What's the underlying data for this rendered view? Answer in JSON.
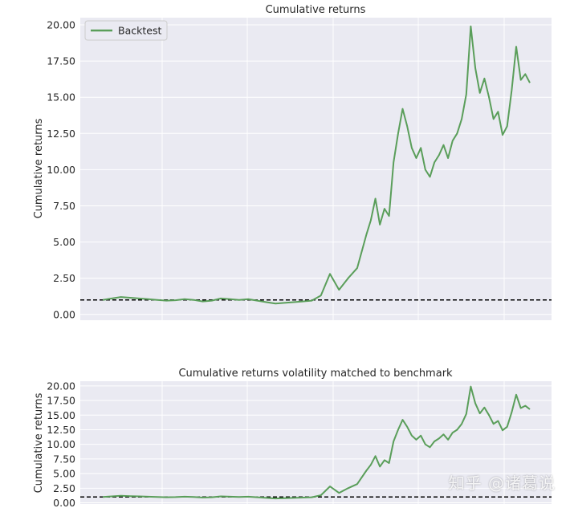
{
  "chart_data": [
    {
      "type": "line",
      "title": "Cumulative returns",
      "xlabel": "",
      "ylabel": "Cumulative returns",
      "ylim": [
        -0.4,
        20.5
      ],
      "yticks": [
        "0.00",
        "2.50",
        "5.00",
        "7.50",
        "10.00",
        "12.50",
        "15.00",
        "17.50",
        "20.00"
      ],
      "ytick_values": [
        0,
        2.5,
        5,
        7.5,
        10,
        12.5,
        15,
        17.5,
        20
      ],
      "xlim": [
        0,
        100
      ],
      "grid": true,
      "legend_position": "upper-left",
      "reference_line": {
        "y": 1.0,
        "style": "dashed",
        "color": "#000000"
      },
      "series": [
        {
          "name": "Backtest",
          "color": "#5a9e5a",
          "x": [
            0,
            2,
            4,
            6,
            8,
            10,
            12,
            14,
            16,
            18,
            20,
            22,
            24,
            26,
            28,
            30,
            32,
            34,
            36,
            38,
            40,
            42,
            44,
            46,
            48,
            50,
            52,
            54,
            56,
            58,
            59,
            60,
            61,
            62,
            63,
            64,
            65,
            66,
            67,
            68,
            69,
            70,
            71,
            72,
            73,
            74,
            75,
            76,
            77,
            78,
            79,
            80,
            81,
            82,
            83,
            84,
            85,
            86,
            87,
            88,
            89,
            90,
            91,
            92,
            93,
            94
          ],
          "values": [
            1.0,
            1.1,
            1.2,
            1.15,
            1.1,
            1.05,
            1.0,
            0.95,
            0.98,
            1.05,
            1.0,
            0.9,
            0.95,
            1.1,
            1.05,
            1.0,
            1.05,
            0.95,
            0.85,
            0.75,
            0.8,
            0.85,
            0.9,
            0.95,
            1.3,
            2.8,
            1.7,
            2.5,
            3.2,
            5.5,
            6.5,
            8.0,
            6.2,
            7.3,
            6.8,
            10.5,
            12.5,
            14.2,
            13.0,
            11.5,
            10.8,
            11.5,
            10.0,
            9.5,
            10.5,
            11.0,
            11.7,
            10.8,
            12.0,
            12.5,
            13.5,
            15.2,
            19.9,
            17.0,
            15.3,
            16.3,
            15.0,
            13.5,
            14.0,
            12.4,
            13.0,
            15.5,
            18.5,
            16.2,
            16.6,
            16.0
          ]
        }
      ]
    },
    {
      "type": "line",
      "title": "Cumulative returns volatility matched to benchmark",
      "xlabel": "",
      "ylabel": "Cumulative returns",
      "ylim": [
        -0.2,
        20.8
      ],
      "yticks": [
        "0.00",
        "2.50",
        "5.00",
        "7.50",
        "10.00",
        "12.50",
        "15.00",
        "17.50",
        "20.00"
      ],
      "ytick_values": [
        0,
        2.5,
        5,
        7.5,
        10,
        12.5,
        15,
        17.5,
        20
      ],
      "xlim": [
        0,
        100
      ],
      "grid": true,
      "reference_line": {
        "y": 1.0,
        "style": "dashed",
        "color": "#000000"
      },
      "series": [
        {
          "color": "#5a9e5a",
          "x": [
            0,
            2,
            4,
            6,
            8,
            10,
            12,
            14,
            16,
            18,
            20,
            22,
            24,
            26,
            28,
            30,
            32,
            34,
            36,
            38,
            40,
            42,
            44,
            46,
            48,
            50,
            52,
            54,
            56,
            58,
            59,
            60,
            61,
            62,
            63,
            64,
            65,
            66,
            67,
            68,
            69,
            70,
            71,
            72,
            73,
            74,
            75,
            76,
            77,
            78,
            79,
            80,
            81,
            82,
            83,
            84,
            85,
            86,
            87,
            88,
            89,
            90,
            91,
            92,
            93,
            94
          ],
          "values": [
            1.0,
            1.1,
            1.2,
            1.15,
            1.1,
            1.05,
            1.0,
            0.95,
            0.98,
            1.05,
            1.0,
            0.9,
            0.95,
            1.1,
            1.05,
            1.0,
            1.05,
            0.95,
            0.85,
            0.75,
            0.8,
            0.85,
            0.9,
            0.95,
            1.3,
            2.8,
            1.7,
            2.5,
            3.2,
            5.5,
            6.5,
            8.0,
            6.2,
            7.3,
            6.8,
            10.5,
            12.5,
            14.2,
            13.0,
            11.5,
            10.8,
            11.5,
            10.0,
            9.5,
            10.5,
            11.0,
            11.7,
            10.8,
            12.0,
            12.5,
            13.5,
            15.2,
            19.9,
            17.0,
            15.3,
            16.3,
            15.0,
            13.5,
            14.0,
            12.4,
            13.0,
            15.5,
            18.5,
            16.2,
            16.6,
            16.0
          ]
        }
      ]
    }
  ],
  "watermark": "知乎 @诸葛说"
}
